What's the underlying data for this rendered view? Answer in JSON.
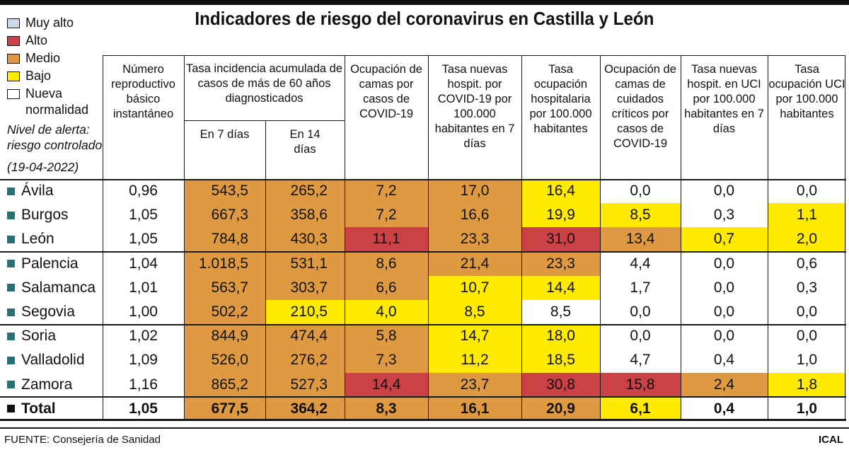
{
  "alert_note": {
    "line1": "Nivel de alerta:",
    "line2": "riesgo controlado",
    "date": "(19-04-2022)"
  },
  "colors": {
    "muy_alto": "#cdd9e6",
    "alto": "#cb4146",
    "medio": "#df9a41",
    "bajo": "#ffeb00",
    "nueva_normalidad": "#ffffff",
    "row_bullet": "#2e6f74",
    "total_bullet": "#111111"
  },
  "footer": {
    "source": "FUENTE: Consejería de Sanidad",
    "credit": "ICAL"
  },
  "chart_data": {
    "type": "table",
    "title": "Indicadores de riesgo del coronavirus en Castilla y León",
    "legend": [
      {
        "label": "Muy alto",
        "color": "#cdd9e6"
      },
      {
        "label": "Alto",
        "color": "#cb4146"
      },
      {
        "label": "Medio",
        "color": "#df9a41"
      },
      {
        "label": "Bajo",
        "color": "#ffeb00"
      },
      {
        "label": "Nueva normalidad",
        "color": "#ffffff"
      }
    ],
    "headers": {
      "reproductive": "Número reproductivo básico instantáneo",
      "incidence_group": "Tasa incidencia acumulada de casos de más de 60 años diagnosticados",
      "en7": "En 7 días",
      "en14": "En 14 días",
      "beds": "Ocupación de camas por casos de COVID-19",
      "new_hosp": "Tasa nuevas hospit. por COVID-19 por 100.000 habitantes en 7 días",
      "hosp_occup": "Tasa ocupación hospitalaria por 100.000 habitantes",
      "icu_beds": "Ocupación de camas de cuidados críticos por casos de COVID-19",
      "icu_new": "Tasa nuevas hospit. en UCI por 100.000 habitantes en 7 días",
      "icu_occup": "Tasa ocupación UCI por 100.000 habitantes"
    },
    "rows": [
      {
        "name": "Ávila",
        "total": false,
        "cells": [
          {
            "v": "0,96",
            "risk": "none"
          },
          {
            "v": "543,5",
            "risk": "medio"
          },
          {
            "v": "265,2",
            "risk": "medio"
          },
          {
            "v": "7,2",
            "risk": "medio"
          },
          {
            "v": "17,0",
            "risk": "medio"
          },
          {
            "v": "16,4",
            "risk": "bajo"
          },
          {
            "v": "0,0",
            "risk": "none"
          },
          {
            "v": "0,0",
            "risk": "none"
          },
          {
            "v": "0,0",
            "risk": "none"
          }
        ]
      },
      {
        "name": "Burgos",
        "total": false,
        "cells": [
          {
            "v": "1,05",
            "risk": "none"
          },
          {
            "v": "667,3",
            "risk": "medio"
          },
          {
            "v": "358,6",
            "risk": "medio"
          },
          {
            "v": "7,2",
            "risk": "medio"
          },
          {
            "v": "16,6",
            "risk": "medio"
          },
          {
            "v": "19,9",
            "risk": "bajo"
          },
          {
            "v": "8,5",
            "risk": "bajo"
          },
          {
            "v": "0,3",
            "risk": "none"
          },
          {
            "v": "1,1",
            "risk": "bajo"
          }
        ]
      },
      {
        "name": "León",
        "total": false,
        "cells": [
          {
            "v": "1,05",
            "risk": "none"
          },
          {
            "v": "784,8",
            "risk": "medio"
          },
          {
            "v": "430,3",
            "risk": "medio"
          },
          {
            "v": "11,1",
            "risk": "alto"
          },
          {
            "v": "23,3",
            "risk": "medio"
          },
          {
            "v": "31,0",
            "risk": "alto"
          },
          {
            "v": "13,4",
            "risk": "medio"
          },
          {
            "v": "0,7",
            "risk": "bajo"
          },
          {
            "v": "2,0",
            "risk": "bajo"
          }
        ]
      },
      {
        "name": "Palencia",
        "total": false,
        "cells": [
          {
            "v": "1,04",
            "risk": "none"
          },
          {
            "v": "1.018,5",
            "risk": "medio"
          },
          {
            "v": "531,1",
            "risk": "medio"
          },
          {
            "v": "8,6",
            "risk": "medio"
          },
          {
            "v": "21,4",
            "risk": "medio"
          },
          {
            "v": "23,3",
            "risk": "medio"
          },
          {
            "v": "4,4",
            "risk": "none"
          },
          {
            "v": "0,0",
            "risk": "none"
          },
          {
            "v": "0,6",
            "risk": "none"
          }
        ]
      },
      {
        "name": "Salamanca",
        "total": false,
        "cells": [
          {
            "v": "1,01",
            "risk": "none"
          },
          {
            "v": "563,7",
            "risk": "medio"
          },
          {
            "v": "303,7",
            "risk": "medio"
          },
          {
            "v": "6,6",
            "risk": "medio"
          },
          {
            "v": "10,7",
            "risk": "bajo"
          },
          {
            "v": "14,4",
            "risk": "bajo"
          },
          {
            "v": "1,7",
            "risk": "none"
          },
          {
            "v": "0,0",
            "risk": "none"
          },
          {
            "v": "0,3",
            "risk": "none"
          }
        ]
      },
      {
        "name": "Segovia",
        "total": false,
        "cells": [
          {
            "v": "1,00",
            "risk": "none"
          },
          {
            "v": "502,2",
            "risk": "medio"
          },
          {
            "v": "210,5",
            "risk": "bajo"
          },
          {
            "v": "4,0",
            "risk": "bajo"
          },
          {
            "v": "8,5",
            "risk": "bajo"
          },
          {
            "v": "8,5",
            "risk": "none"
          },
          {
            "v": "0,0",
            "risk": "none"
          },
          {
            "v": "0,0",
            "risk": "none"
          },
          {
            "v": "0,0",
            "risk": "none"
          }
        ]
      },
      {
        "name": "Soria",
        "total": false,
        "cells": [
          {
            "v": "1,02",
            "risk": "none"
          },
          {
            "v": "844,9",
            "risk": "medio"
          },
          {
            "v": "474,4",
            "risk": "medio"
          },
          {
            "v": "5,8",
            "risk": "medio"
          },
          {
            "v": "14,7",
            "risk": "bajo"
          },
          {
            "v": "18,0",
            "risk": "bajo"
          },
          {
            "v": "0,0",
            "risk": "none"
          },
          {
            "v": "0,0",
            "risk": "none"
          },
          {
            "v": "0,0",
            "risk": "none"
          }
        ]
      },
      {
        "name": "Valladolid",
        "total": false,
        "cells": [
          {
            "v": "1,09",
            "risk": "none"
          },
          {
            "v": "526,0",
            "risk": "medio"
          },
          {
            "v": "276,2",
            "risk": "medio"
          },
          {
            "v": "7,3",
            "risk": "medio"
          },
          {
            "v": "11,2",
            "risk": "bajo"
          },
          {
            "v": "18,5",
            "risk": "bajo"
          },
          {
            "v": "4,7",
            "risk": "none"
          },
          {
            "v": "0,4",
            "risk": "none"
          },
          {
            "v": "1,0",
            "risk": "none"
          }
        ]
      },
      {
        "name": "Zamora",
        "total": false,
        "cells": [
          {
            "v": "1,16",
            "risk": "none"
          },
          {
            "v": "865,2",
            "risk": "medio"
          },
          {
            "v": "527,3",
            "risk": "medio"
          },
          {
            "v": "14,4",
            "risk": "alto"
          },
          {
            "v": "23,7",
            "risk": "medio"
          },
          {
            "v": "30,8",
            "risk": "alto"
          },
          {
            "v": "15,8",
            "risk": "alto"
          },
          {
            "v": "2,4",
            "risk": "medio"
          },
          {
            "v": "1,8",
            "risk": "bajo"
          }
        ]
      },
      {
        "name": "Total",
        "total": true,
        "cells": [
          {
            "v": "1,05",
            "risk": "none"
          },
          {
            "v": "677,5",
            "risk": "medio"
          },
          {
            "v": "364,2",
            "risk": "medio"
          },
          {
            "v": "8,3",
            "risk": "medio"
          },
          {
            "v": "16,1",
            "risk": "medio"
          },
          {
            "v": "20,9",
            "risk": "medio"
          },
          {
            "v": "6,1",
            "risk": "bajo"
          },
          {
            "v": "0,4",
            "risk": "none"
          },
          {
            "v": "1,0",
            "risk": "none"
          }
        ]
      }
    ]
  }
}
